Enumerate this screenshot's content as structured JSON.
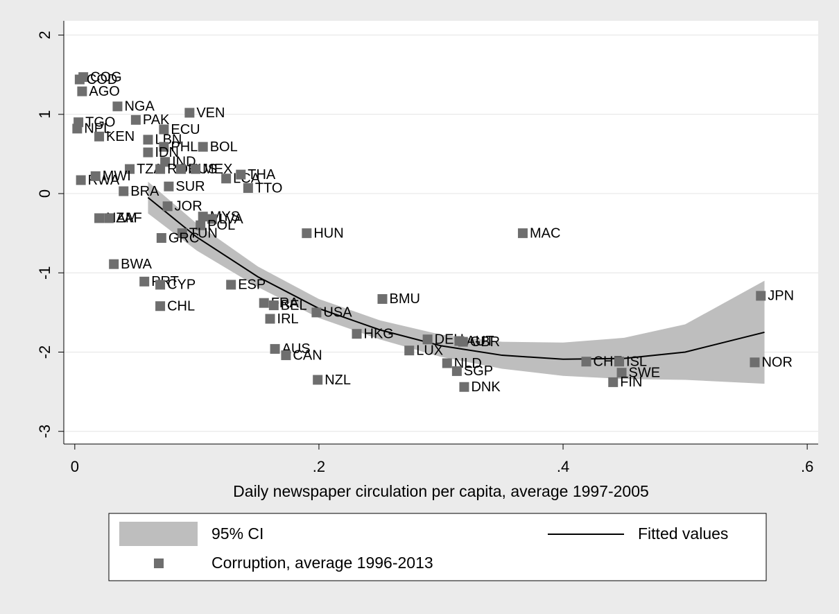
{
  "chart_data": {
    "type": "scatter",
    "x_label": "Daily newspaper circulation per capita, average 1997-2005",
    "xlim": [
      -0.009,
      0.609
    ],
    "ylim": [
      -3.16,
      2.18
    ],
    "xticks": [
      0,
      {
        "value": 0.2,
        "label": ".2"
      },
      {
        "value": 0.4,
        "label": ".4"
      },
      {
        "value": 0.6,
        "label": ".6"
      }
    ],
    "yticks": [
      -3,
      -2,
      -1,
      0,
      1,
      2
    ],
    "grid": true,
    "ci": {
      "name": "95% CI",
      "color": "#bebebe",
      "x": [
        0.06,
        0.1,
        0.15,
        0.2,
        0.25,
        0.3,
        0.35,
        0.4,
        0.45,
        0.5,
        0.565
      ],
      "upper": [
        0.15,
        -0.38,
        -0.92,
        -1.33,
        -1.6,
        -1.78,
        -1.87,
        -1.88,
        -1.82,
        -1.65,
        -1.1
      ],
      "lower": [
        -0.25,
        -0.72,
        -1.18,
        -1.57,
        -1.84,
        -2.06,
        -2.21,
        -2.3,
        -2.34,
        -2.35,
        -2.4
      ]
    },
    "fit": {
      "name": "Fitted values",
      "color": "#000000",
      "x": [
        0.06,
        0.1,
        0.15,
        0.2,
        0.25,
        0.3,
        0.35,
        0.4,
        0.45,
        0.5,
        0.565
      ],
      "values": [
        -0.05,
        -0.55,
        -1.05,
        -1.45,
        -1.72,
        -1.92,
        -2.04,
        -2.09,
        -2.08,
        -2.0,
        -1.75
      ]
    },
    "series": [
      {
        "name": "Corruption, average 1996-2013",
        "color": "#6e6e6e",
        "labels": [
          "COG",
          "COD",
          "AGO",
          "TGO",
          "NPL",
          "KEN",
          "NGA",
          "PAK",
          "ECU",
          "VEN",
          "LBN",
          "PHL",
          "BOL",
          "IDN",
          "IND",
          "TZA",
          "ROU",
          "RUS",
          "MEX",
          "LCA",
          "THA",
          "TTO",
          "SUR",
          "BRA",
          "RWA",
          "MWI",
          "JOR",
          "MYS",
          "LVA",
          "POL",
          "TUN",
          "GRC",
          "NAM",
          "ZAF",
          "BWA",
          "PRT",
          "CYP",
          "CHL",
          "ESP",
          "FRA",
          "BEL",
          "IRL",
          "USA",
          "HUN",
          "BMU",
          "HKG",
          "LUX",
          "DEU",
          "AUT",
          "GBR",
          "NLD",
          "SGP",
          "DNK",
          "AUS",
          "CAN",
          "NZL",
          "MAC",
          "CHE",
          "ISL",
          "SWE",
          "FIN",
          "NOR",
          "JPN"
        ],
        "x": [
          0.007,
          0.004,
          0.006,
          0.003,
          0.002,
          0.02,
          0.035,
          0.05,
          0.073,
          0.094,
          0.06,
          0.073,
          0.105,
          0.06,
          0.074,
          0.045,
          0.07,
          0.087,
          0.099,
          0.124,
          0.136,
          0.142,
          0.077,
          0.04,
          0.005,
          0.017,
          0.076,
          0.105,
          0.1125,
          0.103,
          0.088,
          0.071,
          0.02,
          0.028,
          0.032,
          0.057,
          0.07,
          0.07,
          0.128,
          0.155,
          0.163,
          0.16,
          0.198,
          0.19,
          0.252,
          0.231,
          0.274,
          0.289,
          0.315,
          0.318,
          0.305,
          0.313,
          0.319,
          0.164,
          0.173,
          0.199,
          0.367,
          0.419,
          0.446,
          0.448,
          0.441,
          0.557,
          0.562
        ],
        "values": [
          1.47,
          1.44,
          1.29,
          0.9,
          0.82,
          0.72,
          1.1,
          0.93,
          0.81,
          1.02,
          0.68,
          0.59,
          0.59,
          0.52,
          0.4,
          0.31,
          0.31,
          0.31,
          0.31,
          0.19,
          0.24,
          0.07,
          0.09,
          0.03,
          0.17,
          0.22,
          -0.16,
          -0.29,
          -0.32,
          -0.4,
          -0.5,
          -0.56,
          -0.31,
          -0.31,
          -0.89,
          -1.11,
          -1.15,
          -1.42,
          -1.15,
          -1.38,
          -1.41,
          -1.58,
          -1.5,
          -0.5,
          -1.33,
          -1.77,
          -1.98,
          -1.84,
          -1.86,
          -1.87,
          -2.14,
          -2.24,
          -2.44,
          -1.96,
          -2.04,
          -2.35,
          -0.5,
          -2.12,
          -2.12,
          -2.26,
          -2.38,
          -2.13,
          -1.29
        ]
      }
    ]
  }
}
